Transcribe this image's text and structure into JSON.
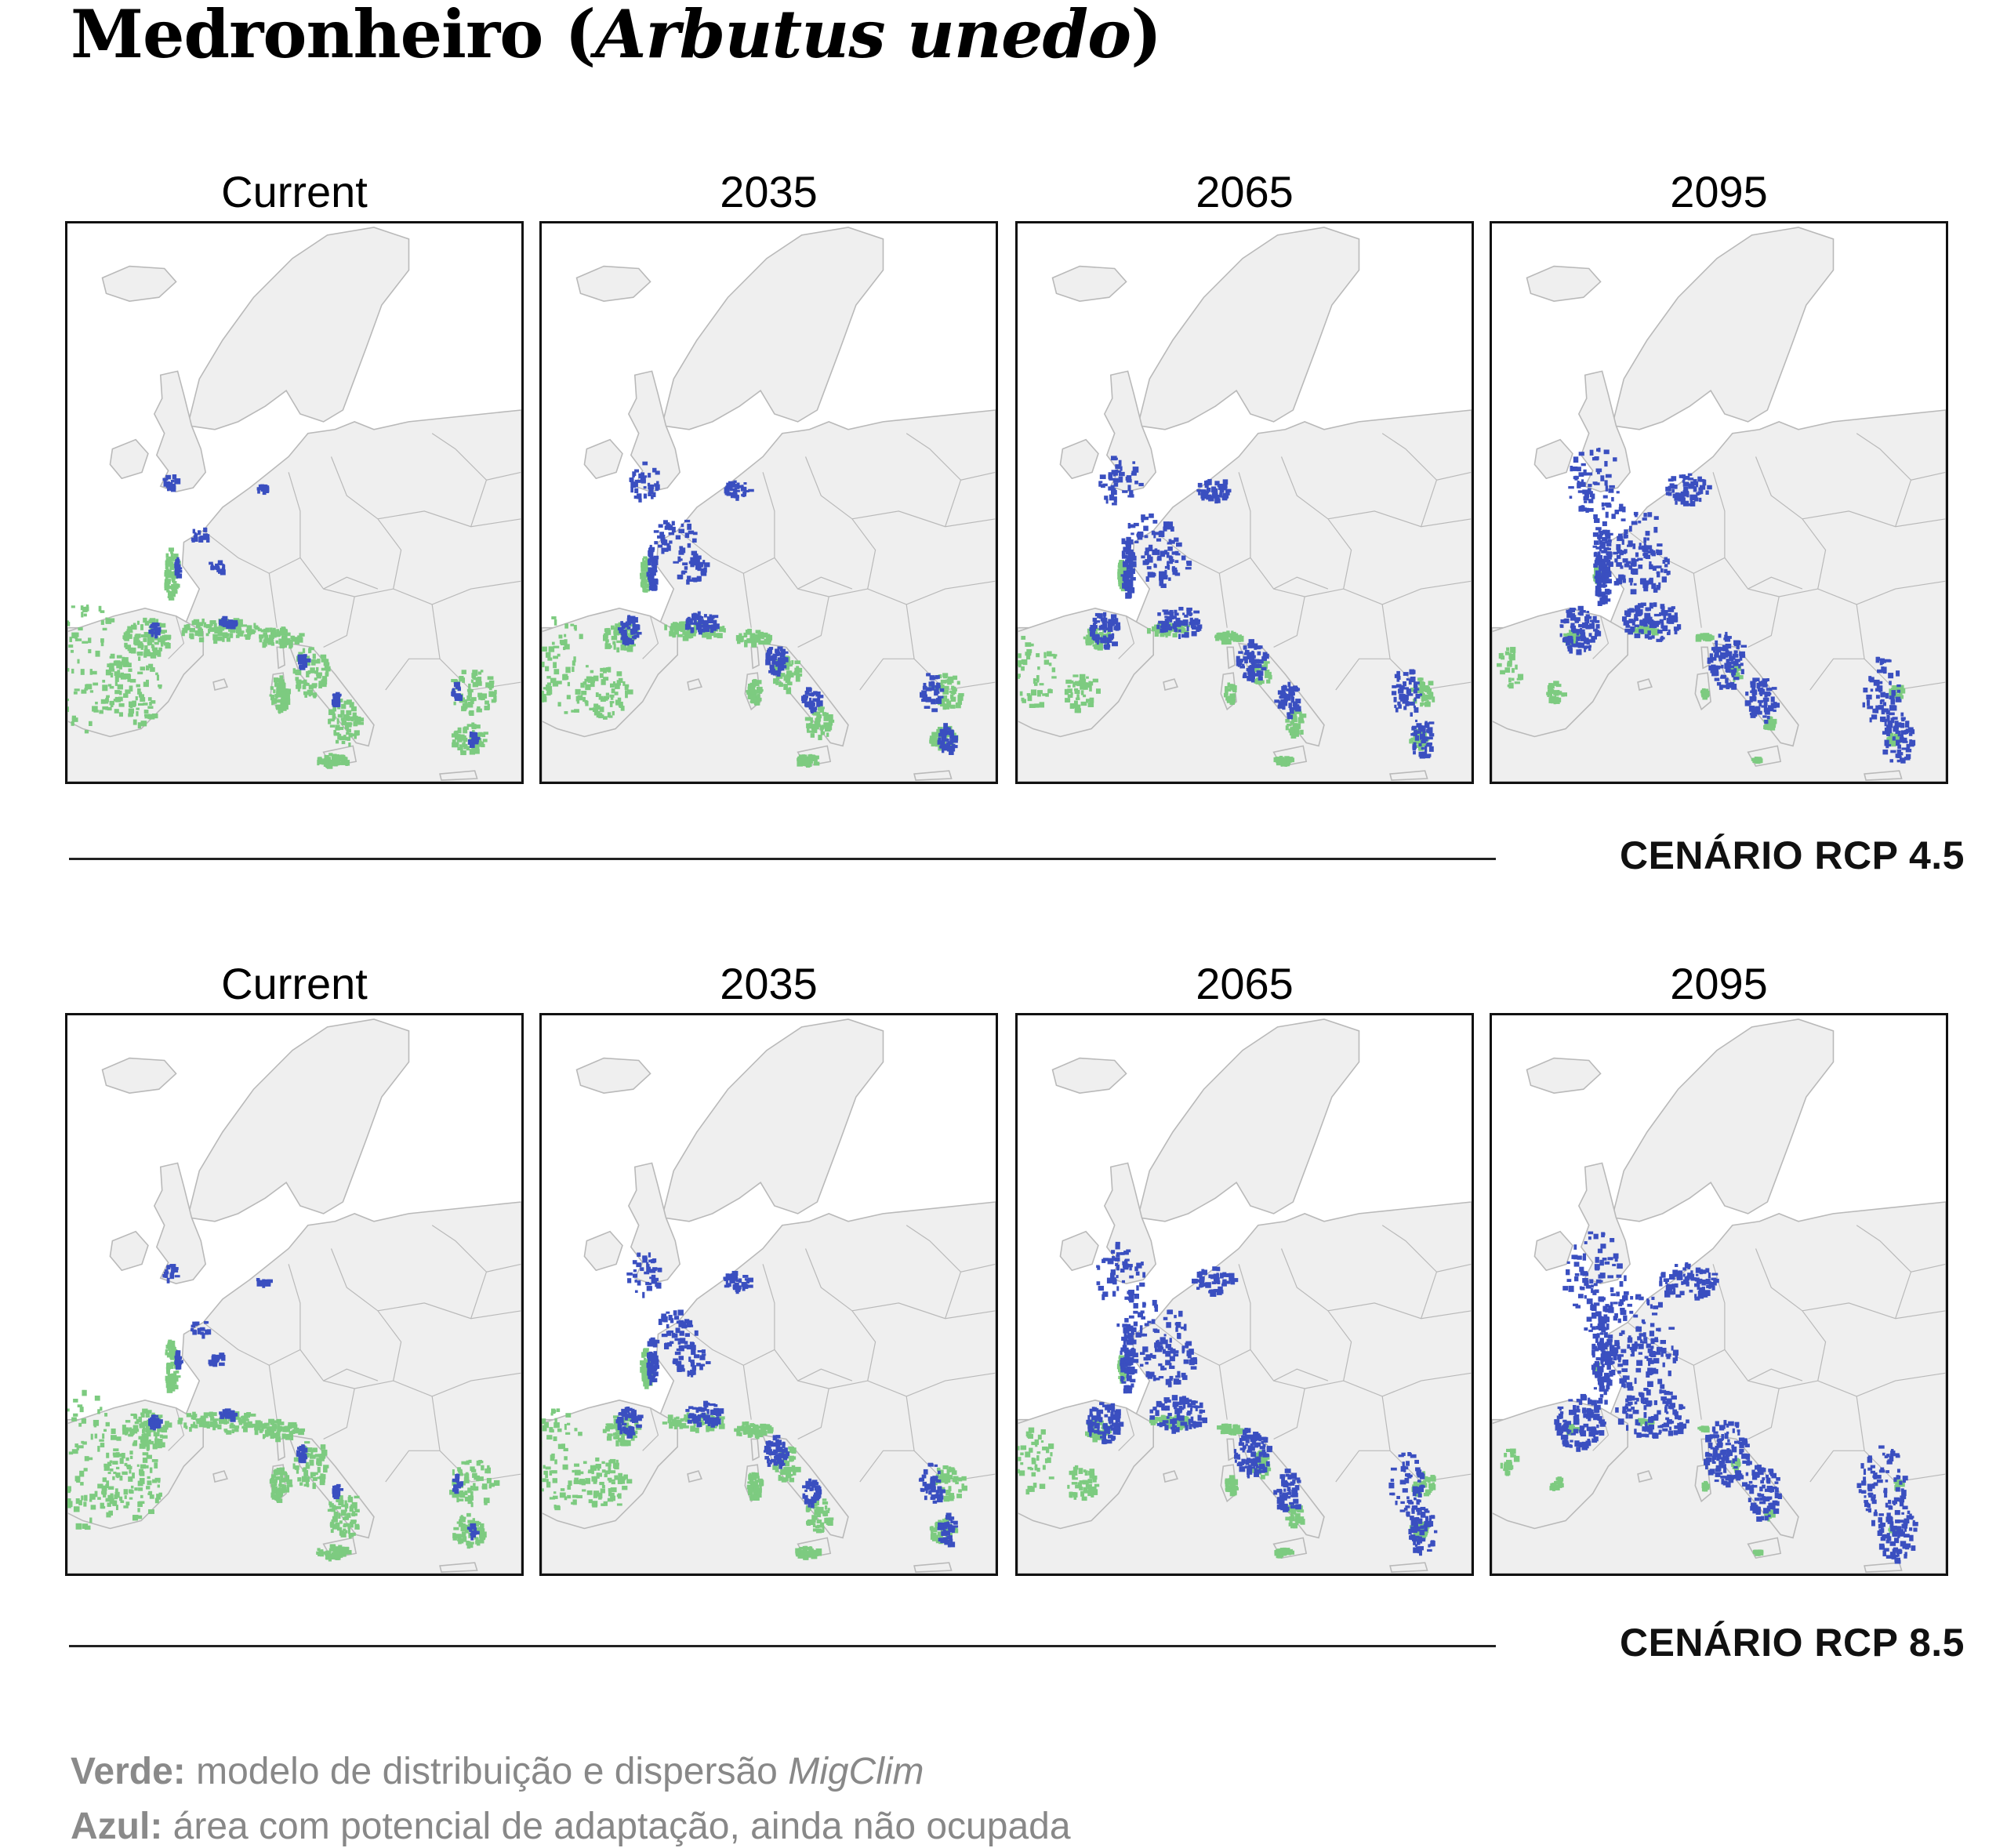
{
  "title": {
    "main": "Medronheiro (",
    "italic": "Arbutus unedo",
    "close": ")"
  },
  "scenarios": [
    {
      "name": "CENÁRIO RCP 4.5",
      "panels": [
        {
          "label": "Current",
          "green": 1.0,
          "blue": 0.25
        },
        {
          "label": "2035",
          "green": 0.75,
          "blue": 0.55
        },
        {
          "label": "2065",
          "green": 0.55,
          "blue": 0.75
        },
        {
          "label": "2095",
          "green": 0.3,
          "blue": 1.0
        }
      ]
    },
    {
      "name": "CENÁRIO RCP 8.5",
      "panels": [
        {
          "label": "Current",
          "green": 1.0,
          "blue": 0.25
        },
        {
          "label": "2035",
          "green": 0.75,
          "blue": 0.6
        },
        {
          "label": "2065",
          "green": 0.5,
          "blue": 0.9
        },
        {
          "label": "2095",
          "green": 0.2,
          "blue": 1.2
        }
      ]
    }
  ],
  "legend": {
    "green_label": "Verde:",
    "green_text": " modelo de distribuição e dispersão ",
    "green_model": "MigClim",
    "blue_label": "Azul:",
    "blue_text": " área com potencial de adaptação, ainda não ocupada"
  },
  "colors": {
    "land": "#efefef",
    "border": "#b9b9b9",
    "green": "#7dcb80",
    "blue": "#3a4fc0"
  }
}
